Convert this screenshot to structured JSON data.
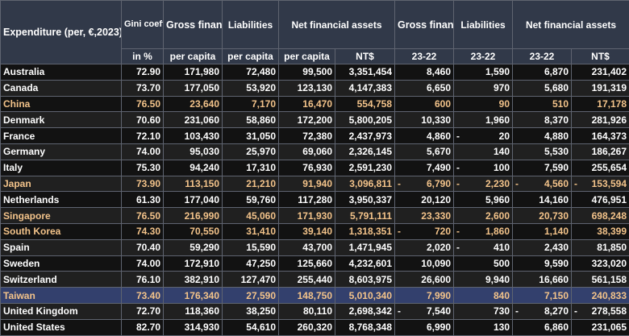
{
  "header": {
    "expenditure": "Expenditure (per, €,2023)",
    "gini": "Gini coefficient of wealth distribution",
    "gross_fin_assets": "Gross financial assets",
    "liabilities": "Liabilities",
    "net_fin_assets": "Net financial assets",
    "gross_fin_assets_2": "Gross financial assets",
    "liabilities_2": "Liabilities",
    "net_fin_assets_2": "Net financial assets",
    "units": [
      "",
      "in %",
      "per capita",
      "per capita",
      "per capita",
      "NT$",
      "23-22",
      "23-22",
      "23-22",
      "NT$"
    ]
  },
  "rows": [
    {
      "name": "Australia",
      "gini": "72.90",
      "gross": "171,980",
      "liab": "72,480",
      "net": "99,500",
      "net_ntd": "3,351,454",
      "gross_chg": "8,460",
      "liab_chg": "1,590",
      "net_chg": "6,870",
      "chg_ntd": "231,402",
      "highlight": false
    },
    {
      "name": "Canada",
      "gini": "73.70",
      "gross": "177,050",
      "liab": "53,920",
      "net": "123,130",
      "net_ntd": "4,147,383",
      "gross_chg": "6,650",
      "liab_chg": "970",
      "net_chg": "5,680",
      "chg_ntd": "191,319",
      "highlight": false
    },
    {
      "name": "China",
      "gini": "76.50",
      "gross": "23,640",
      "liab": "7,170",
      "net": "16,470",
      "net_ntd": "554,758",
      "gross_chg": "600",
      "liab_chg": "90",
      "net_chg": "510",
      "chg_ntd": "17,178",
      "highlight": true
    },
    {
      "name": "Denmark",
      "gini": "70.60",
      "gross": "231,060",
      "liab": "58,860",
      "net": "172,200",
      "net_ntd": "5,800,205",
      "gross_chg": "10,330",
      "liab_chg": "1,960",
      "net_chg": "8,370",
      "chg_ntd": "281,926",
      "highlight": false
    },
    {
      "name": "France",
      "gini": "72.10",
      "gross": "103,430",
      "liab": "31,050",
      "net": "72,380",
      "net_ntd": "2,437,973",
      "gross_chg": "4,860",
      "liab_chg": "- 20",
      "net_chg": "4,880",
      "chg_ntd": "164,373",
      "highlight": false
    },
    {
      "name": "Germany",
      "gini": "74.00",
      "gross": "95,030",
      "liab": "25,970",
      "net": "69,060",
      "net_ntd": "2,326,145",
      "gross_chg": "5,670",
      "liab_chg": "140",
      "net_chg": "5,530",
      "chg_ntd": "186,267",
      "highlight": false
    },
    {
      "name": "Italy",
      "gini": "75.30",
      "gross": "94,240",
      "liab": "17,310",
      "net": "76,930",
      "net_ntd": "2,591,230",
      "gross_chg": "7,490",
      "liab_chg": "- 100",
      "net_chg": "7,590",
      "chg_ntd": "255,654",
      "highlight": false
    },
    {
      "name": "Japan",
      "gini": "73.90",
      "gross": "113,150",
      "liab": "21,210",
      "net": "91,940",
      "net_ntd": "3,096,811",
      "gross_chg": "- 6,790",
      "liab_chg": "- 2,230",
      "net_chg": "- 4,560",
      "chg_ntd": "- 153,594",
      "highlight": true
    },
    {
      "name": "Netherlands",
      "gini": "61.30",
      "gross": "177,040",
      "liab": "59,760",
      "net": "117,280",
      "net_ntd": "3,950,337",
      "gross_chg": "20,120",
      "liab_chg": "5,960",
      "net_chg": "14,160",
      "chg_ntd": "476,951",
      "highlight": false
    },
    {
      "name": "Singapore",
      "gini": "76.50",
      "gross": "216,990",
      "liab": "45,060",
      "net": "171,930",
      "net_ntd": "5,791,111",
      "gross_chg": "23,330",
      "liab_chg": "2,600",
      "net_chg": "20,730",
      "chg_ntd": "698,248",
      "highlight": true
    },
    {
      "name": "South Korea",
      "gini": "74.30",
      "gross": "70,550",
      "liab": "31,410",
      "net": "39,140",
      "net_ntd": "1,318,351",
      "gross_chg": "- 720",
      "liab_chg": "- 1,860",
      "net_chg": "1,140",
      "chg_ntd": "38,399",
      "highlight": true
    },
    {
      "name": "Spain",
      "gini": "70.40",
      "gross": "59,290",
      "liab": "15,590",
      "net": "43,700",
      "net_ntd": "1,471,945",
      "gross_chg": "2,020",
      "liab_chg": "- 410",
      "net_chg": "2,430",
      "chg_ntd": "81,850",
      "highlight": false
    },
    {
      "name": "Sweden",
      "gini": "74.00",
      "gross": "172,910",
      "liab": "47,250",
      "net": "125,660",
      "net_ntd": "4,232,601",
      "gross_chg": "10,090",
      "liab_chg": "500",
      "net_chg": "9,590",
      "chg_ntd": "323,020",
      "highlight": false
    },
    {
      "name": "Switzerland",
      "gini": "76.10",
      "gross": "382,910",
      "liab": "127,470",
      "net": "255,440",
      "net_ntd": "8,603,975",
      "gross_chg": "26,600",
      "liab_chg": "9,940",
      "net_chg": "16,660",
      "chg_ntd": "561,158",
      "highlight": false
    },
    {
      "name": "Taiwan",
      "gini": "73.40",
      "gross": "176,340",
      "liab": "27,590",
      "net": "148,750",
      "net_ntd": "5,010,340",
      "gross_chg": "7,990",
      "liab_chg": "840",
      "net_chg": "7,150",
      "chg_ntd": "240,833",
      "highlight": true,
      "taiwan": true
    },
    {
      "name": "United Kingdom",
      "gini": "72.70",
      "gross": "118,360",
      "liab": "38,250",
      "net": "80,110",
      "net_ntd": "2,698,342",
      "gross_chg": "- 7,540",
      "liab_chg": "730",
      "net_chg": "- 8,270",
      "chg_ntd": "- 278,558",
      "highlight": false
    },
    {
      "name": "United States",
      "gini": "82.70",
      "gross": "314,930",
      "liab": "54,610",
      "net": "260,320",
      "net_ntd": "8,768,348",
      "gross_chg": "6,990",
      "liab_chg": "130",
      "net_chg": "6,860",
      "chg_ntd": "231,065",
      "highlight": false
    }
  ]
}
